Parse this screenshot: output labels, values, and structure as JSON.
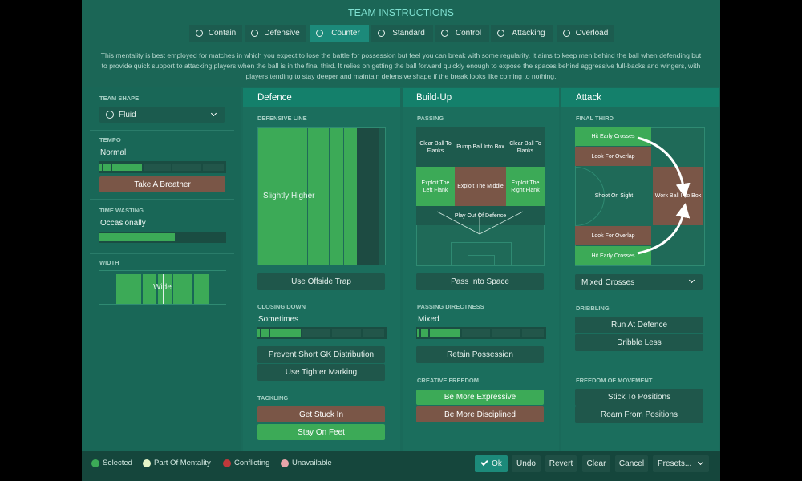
{
  "header": {
    "title": "TEAM INSTRUCTIONS",
    "tabs": [
      "Contain",
      "Defensive",
      "Counter",
      "Standard",
      "Control",
      "Attacking",
      "Overload"
    ],
    "description": "This mentality is best employed for matches in which you expect to lose the battle for possession but feel you can break with some regularity.  It aims to keep men behind the ball when defending but to provide quick support to attacking players when the ball is in the final third. It relies on getting the ball forward quickly enough to expose the spaces behind aggressive full-backs and wingers, with players tending to stay deeper and maintain defensive shape if the break looks like coming to nothing."
  },
  "sidebar": {
    "team_shape": {
      "label": "TEAM SHAPE",
      "value": "Fluid"
    },
    "tempo": {
      "label": "TEMPO",
      "value": "Normal",
      "button": "Take A Breather"
    },
    "time_wasting": {
      "label": "TIME WASTING",
      "value": "Occasionally"
    },
    "width": {
      "label": "WIDTH",
      "value": "Wide"
    }
  },
  "defence": {
    "title": "Defence",
    "defensive_line": {
      "label": "DEFENSIVE LINE",
      "value": "Slightly Higher"
    },
    "offside": "Use Offside Trap",
    "closing_down": {
      "label": "CLOSING DOWN",
      "value": "Sometimes",
      "options": [
        "Prevent Short GK Distribution",
        "Use Tighter Marking"
      ]
    },
    "tackling": {
      "label": "TACKLING",
      "options": [
        "Get Stuck In",
        "Stay On Feet"
      ]
    }
  },
  "build_up": {
    "title": "Build-Up",
    "passing": {
      "label": "PASSING",
      "zones": [
        "Clear Ball To Flanks",
        "Pump Ball Into Box",
        "Clear Ball To Flanks",
        "Exploit The Left Flank",
        "Exploit The Middle",
        "Exploit The Right Flank",
        "Play Out Of Defence"
      ]
    },
    "pass_into_space": "Pass Into Space",
    "directness": {
      "label": "PASSING DIRECTNESS",
      "value": "Mixed",
      "option": "Retain Possession"
    },
    "creative_freedom": {
      "label": "CREATIVE FREEDOM",
      "options": [
        "Be More Expressive",
        "Be More Disciplined"
      ]
    }
  },
  "attack": {
    "title": "Attack",
    "final_third": {
      "label": "FINAL THIRD",
      "zones": [
        "Hit Early Crosses",
        "Look For Overlap",
        "Shoot On Sight",
        "Work Ball Into Box",
        "Look For Overlap",
        "Hit Early Crosses"
      ],
      "crossing": "Mixed Crosses"
    },
    "dribbling": {
      "label": "DRIBBLING",
      "options": [
        "Run At Defence",
        "Dribble Less"
      ]
    },
    "freedom": {
      "label": "FREEDOM OF MOVEMENT",
      "options": [
        "Stick To Positions",
        "Roam From Positions"
      ]
    }
  },
  "legend": [
    "Selected",
    "Part Of Mentality",
    "Conflicting",
    "Unavailable"
  ],
  "actions": [
    "Ok",
    "Undo",
    "Revert",
    "Clear",
    "Cancel",
    "Presets..."
  ]
}
